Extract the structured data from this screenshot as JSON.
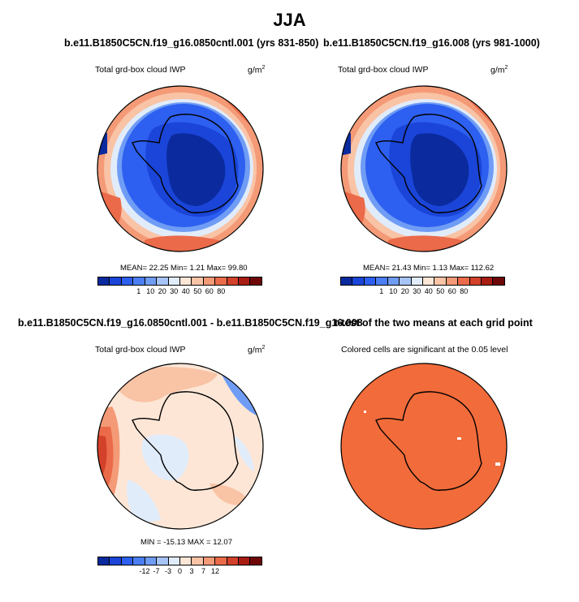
{
  "main_title": "JJA",
  "panels": [
    {
      "title": "b.e11.B1850C5CN.f19_g16.0850cntl.001 (yrs 831-850)",
      "subtitle": "Total grd-box cloud IWP",
      "units": "g/m",
      "units_sup": "2",
      "stats": "MEAN=  22.25  Min=    1.21  Max=  99.80",
      "colorbar_labels": [
        "1",
        "10",
        "20",
        "30",
        "40",
        "50",
        "60",
        "80"
      ]
    },
    {
      "title": "b.e11.B1850C5CN.f19_g16.008 (yrs 981-1000)",
      "subtitle": "Total grd-box cloud IWP",
      "units": "g/m",
      "units_sup": "2",
      "stats": "MEAN=  21.43  Min=    1.13  Max= 112.62",
      "colorbar_labels": [
        "1",
        "10",
        "20",
        "30",
        "40",
        "50",
        "60",
        "80"
      ]
    },
    {
      "title": "b.e11.B1850C5CN.f19_g16.0850cntl.001 - b.e11.B1850C5CN.f19_g16.008",
      "subtitle": "Total grd-box cloud IWP",
      "units": "g/m",
      "units_sup": "2",
      "stats": "MIN = -15.13 MAX =  12.07",
      "colorbar_labels": [
        "-12",
        "-7",
        "-3",
        "0",
        "3",
        "7",
        "12"
      ]
    },
    {
      "title": "t-test of the two means at each grid point",
      "subtitle": "Colored cells are significant at the 0.05 level"
    }
  ],
  "colors": {
    "abs_scale": [
      "#0a2a9e",
      "#1a45d8",
      "#2d5ff0",
      "#4a7ef2",
      "#6f9cf4",
      "#a6c4f8",
      "#e1ecfb",
      "#fde6d6",
      "#f9c3a6",
      "#f49a77",
      "#ea6a49",
      "#d3412a",
      "#a81d12",
      "#6e0707"
    ],
    "diff_scale": [
      "#0a2a9e",
      "#1a45d8",
      "#2d5ff0",
      "#4a7ef2",
      "#6f9cf4",
      "#a6c4f8",
      "#e1ecfb",
      "#fde6d6",
      "#f9c3a6",
      "#f49a77",
      "#ea6a49",
      "#d3412a",
      "#a81d12",
      "#6e0707"
    ],
    "significance": "#f26b3a"
  }
}
